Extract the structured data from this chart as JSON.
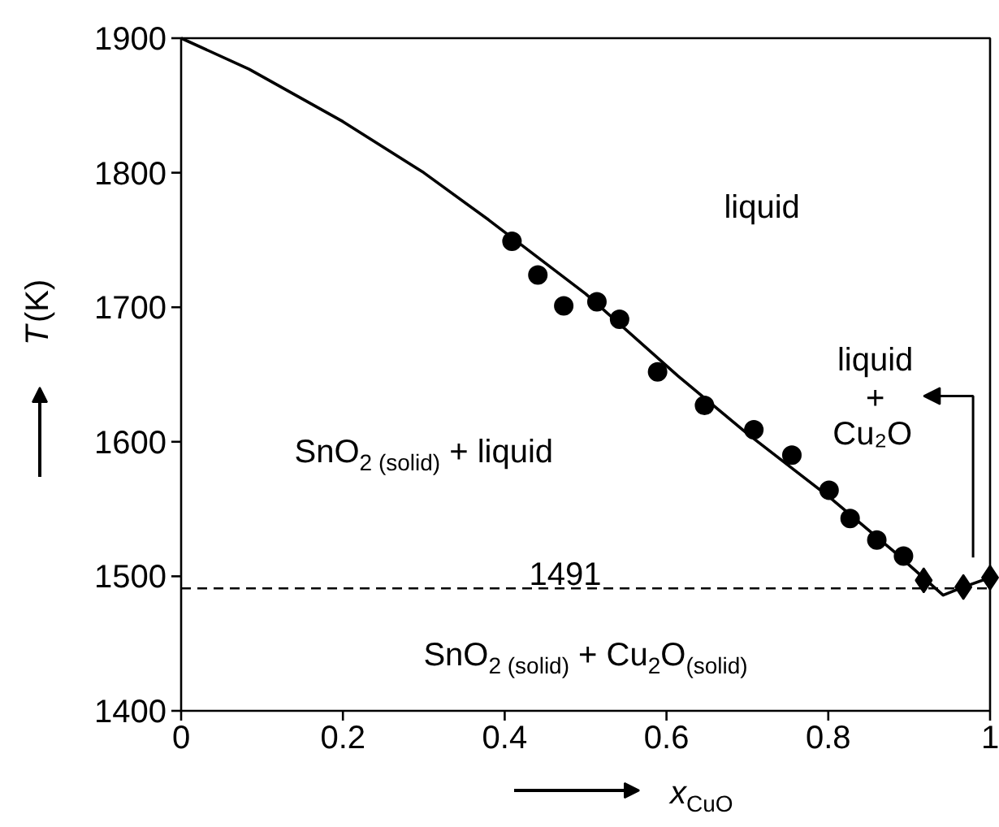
{
  "chart_data": {
    "type": "scatter",
    "xlabel": "x$_{CuO}$",
    "ylabel": "T(K)",
    "xlim": [
      0,
      1
    ],
    "ylim": [
      1400,
      1900
    ],
    "xticks": [
      0,
      0.2,
      0.4,
      0.6,
      0.8,
      1
    ],
    "yticks": [
      1400,
      1500,
      1600,
      1700,
      1800,
      1900
    ],
    "grid": false,
    "series": [
      {
        "type": "line",
        "color": "#000000",
        "marker": "none",
        "line_style": "solid",
        "x": [
          0,
          0.084,
          0.2,
          0.3,
          0.38,
          0.5,
          0.614,
          0.7,
          0.801,
          0.88,
          0.942,
          0.967,
          1.0
        ],
        "values": [
          1900,
          1877,
          1838,
          1800,
          1765,
          1710,
          1649,
          1606,
          1559,
          1519,
          1486,
          1492,
          1499
        ]
      },
      {
        "color": "#000000",
        "marker": "circle",
        "x": [
          0.409,
          0.441,
          0.473,
          0.514,
          0.542,
          0.589,
          0.647,
          0.708,
          0.755,
          0.801,
          0.827,
          0.86,
          0.893
        ],
        "values": [
          1749,
          1724,
          1701,
          1704,
          1691,
          1652,
          1627,
          1609,
          1590,
          1564,
          1543,
          1527,
          1515
        ]
      },
      {
        "color": "#000000",
        "marker": "diamond",
        "x": [
          0.918,
          0.967,
          1.0
        ],
        "values": [
          1497,
          1492,
          1499
        ]
      }
    ],
    "ref_lines": [
      {
        "axis": "y",
        "value": 1491,
        "label": "1491",
        "line_style": "dashed",
        "color": "#000000"
      }
    ],
    "annotations": [
      "liquid",
      "liquid\n+\nCu₂O",
      "SnO$_{2 (solid)}$ + liquid",
      "SnO$_{2 (solid)}$ + Cu$_{2}$O$_{(solid)}$"
    ]
  }
}
